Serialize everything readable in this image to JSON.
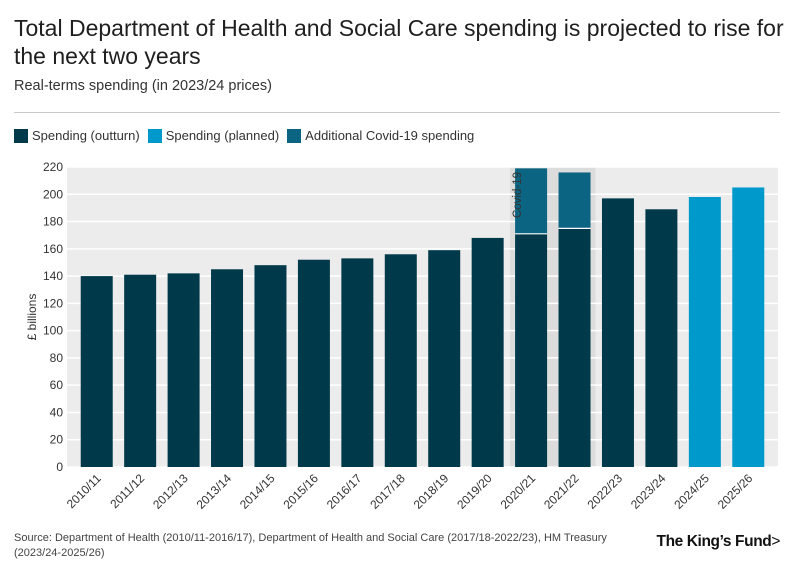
{
  "header": {
    "title": "Total Department of Health and Social Care spending is projected to rise for the next two years",
    "subtitle": "Real-terms spending (in 2023/24 prices)"
  },
  "legend": [
    {
      "label": "Spending (outturn)",
      "color": "#003a4a"
    },
    {
      "label": "Spending (planned)",
      "color": "#0099cc"
    },
    {
      "label": "Additional Covid-19 spending",
      "color": "#0b6481"
    }
  ],
  "footer": {
    "source": "Source: Department of Health (2010/11-2016/17), Department of Health and Social Care (2017/18-2022/23), HM Treasury (2023/24-2025/26)",
    "logo": "The King’s Fund",
    "logo_arrow": ">"
  },
  "chart_data": {
    "type": "bar",
    "stacked": true,
    "title": "Total Department of Health and Social Care spending is projected to rise for the next two years",
    "subtitle": "Real-terms spending (in 2023/24 prices)",
    "xlabel": "",
    "ylabel": "£ billions",
    "ylim": [
      0,
      220
    ],
    "yticks": [
      0,
      20,
      40,
      60,
      80,
      100,
      120,
      140,
      160,
      180,
      200,
      220
    ],
    "grid": true,
    "categories": [
      "2010/11",
      "2011/12",
      "2012/13",
      "2013/14",
      "2014/15",
      "2015/16",
      "2016/17",
      "2017/18",
      "2018/19",
      "2019/20",
      "2020/21",
      "2021/22",
      "2022/23",
      "2023/24",
      "2024/25",
      "2025/26"
    ],
    "series": [
      {
        "name": "Spending (outturn)",
        "color": "#003a4a",
        "values": [
          140,
          141,
          142,
          145,
          148,
          152,
          153,
          156,
          159,
          168,
          171,
          175,
          197,
          189,
          null,
          null
        ]
      },
      {
        "name": "Spending (planned)",
        "color": "#0099cc",
        "values": [
          null,
          null,
          null,
          null,
          null,
          null,
          null,
          null,
          null,
          null,
          null,
          null,
          null,
          null,
          198,
          205
        ]
      },
      {
        "name": "Additional Covid-19 spending",
        "color": "#0b6481",
        "values": [
          null,
          null,
          null,
          null,
          null,
          null,
          null,
          null,
          null,
          null,
          48,
          41,
          null,
          null,
          null,
          null
        ]
      }
    ],
    "annotation": {
      "text": "Covid-19",
      "categories": [
        "2020/21",
        "2021/22"
      ]
    }
  }
}
